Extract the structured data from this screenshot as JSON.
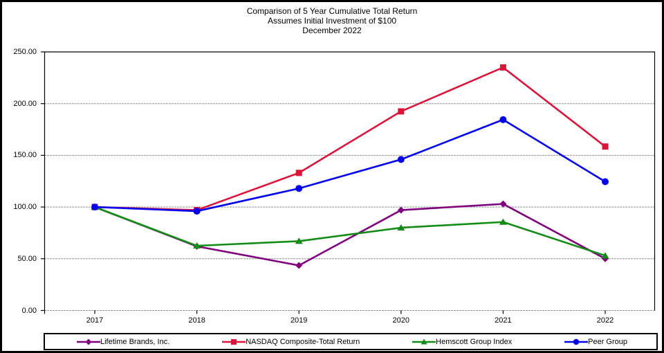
{
  "title": {
    "line1": "Comparison of 5 Year Cumulative Total Return",
    "line2": "Assumes Initial Investment of $100",
    "line3": "December 2022"
  },
  "chart_data": {
    "type": "line",
    "categories": [
      "2017",
      "2018",
      "2019",
      "2020",
      "2021",
      "2022"
    ],
    "series": [
      {
        "name": "Lifetime Brands, Inc.",
        "marker": "diamond",
        "color": "#800080",
        "values": [
          100.0,
          62.0,
          43.5,
          97.0,
          103.0,
          50.0
        ]
      },
      {
        "name": "NASDAQ Composite-Total Return",
        "marker": "square",
        "color": "#DC1439",
        "values": [
          100.0,
          97.0,
          133.0,
          192.5,
          235.0,
          158.5
        ]
      },
      {
        "name": "Hemscott Group Index",
        "marker": "triangle",
        "color": "#118C14",
        "values": [
          100.0,
          62.5,
          67.0,
          80.0,
          85.5,
          53.0
        ]
      },
      {
        "name": "Peer Group",
        "marker": "circle",
        "color": "#0202EE",
        "values": [
          100.0,
          96.0,
          118.0,
          146.0,
          184.5,
          124.5
        ]
      }
    ],
    "ylim": [
      0,
      250
    ],
    "ytick_interval": 50,
    "ytick_labels": [
      "0.00",
      "50.00",
      "100.00",
      "150.00",
      "200.00",
      "250.00"
    ],
    "grid": true,
    "grid_color": "#909090",
    "axis_color": "#000000",
    "legend_position": "bottom"
  }
}
